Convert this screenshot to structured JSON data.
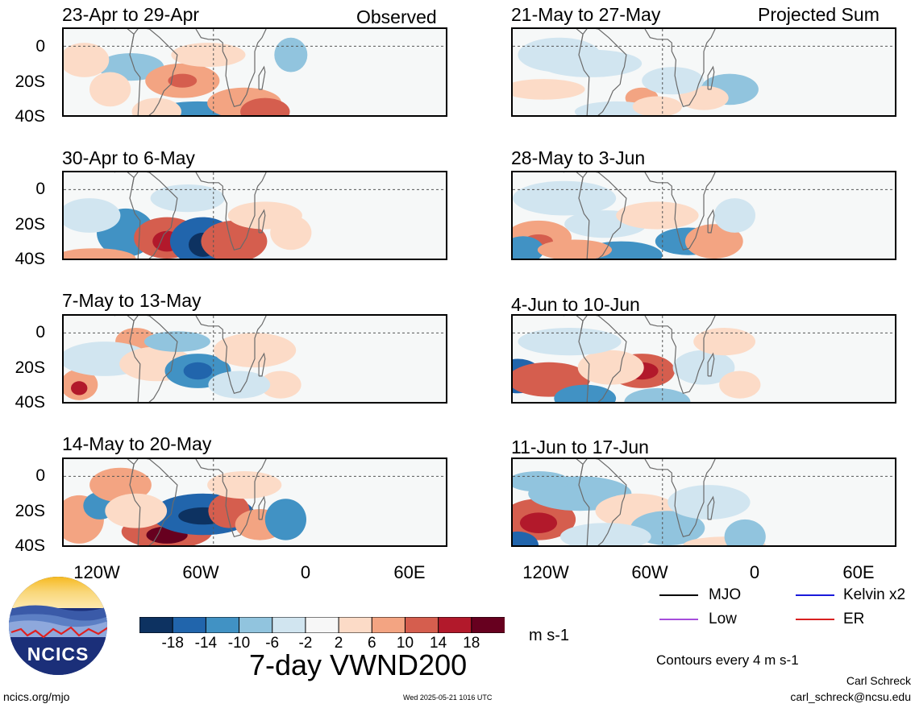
{
  "panels_left": [
    {
      "title": "23-Apr to 29-Apr"
    },
    {
      "title": "30-Apr to 6-May"
    },
    {
      "title": "7-May to 13-May"
    },
    {
      "title": "14-May to 20-May"
    }
  ],
  "panels_right": [
    {
      "title": "21-May to 27-May"
    },
    {
      "title": "28-May to 3-Jun"
    },
    {
      "title": "4-Jun to 10-Jun"
    },
    {
      "title": "11-Jun to 17-Jun"
    }
  ],
  "observed_label": "Observed",
  "projected_label": "Projected Sum",
  "y_ticks": [
    "0",
    "20S",
    "40S"
  ],
  "x_ticks": [
    "120W",
    "60W",
    "0",
    "60E"
  ],
  "colorbar": {
    "labels": [
      "-18",
      "-14",
      "-10",
      "-6",
      "-2",
      "2",
      "6",
      "10",
      "14",
      "18"
    ],
    "colors": [
      "#0d3261",
      "#2165ac",
      "#4192c4",
      "#91c4de",
      "#d1e5f0",
      "#f7f7f7",
      "#fcdbc7",
      "#f3a482",
      "#d55e4e",
      "#b2192b",
      "#67001f"
    ],
    "units": "m s-1"
  },
  "legend": [
    {
      "label": "MJO",
      "color": "#000000"
    },
    {
      "label": "Kelvin x2",
      "color": "#1a1adb"
    },
    {
      "label": "Low",
      "color": "#a64ddb"
    },
    {
      "label": "ER",
      "color": "#d92020"
    }
  ],
  "contours_note": "Contours every 4 m s-1",
  "main_title": "7-day VWND200",
  "logo_text": "NCICS",
  "footer_left": "ncics.org/mjo",
  "footer_center": "Wed 2025-05-21 1016 UTC",
  "author_name": "Carl Schreck",
  "author_email": "carl_schreck@ncsu.edu"
}
